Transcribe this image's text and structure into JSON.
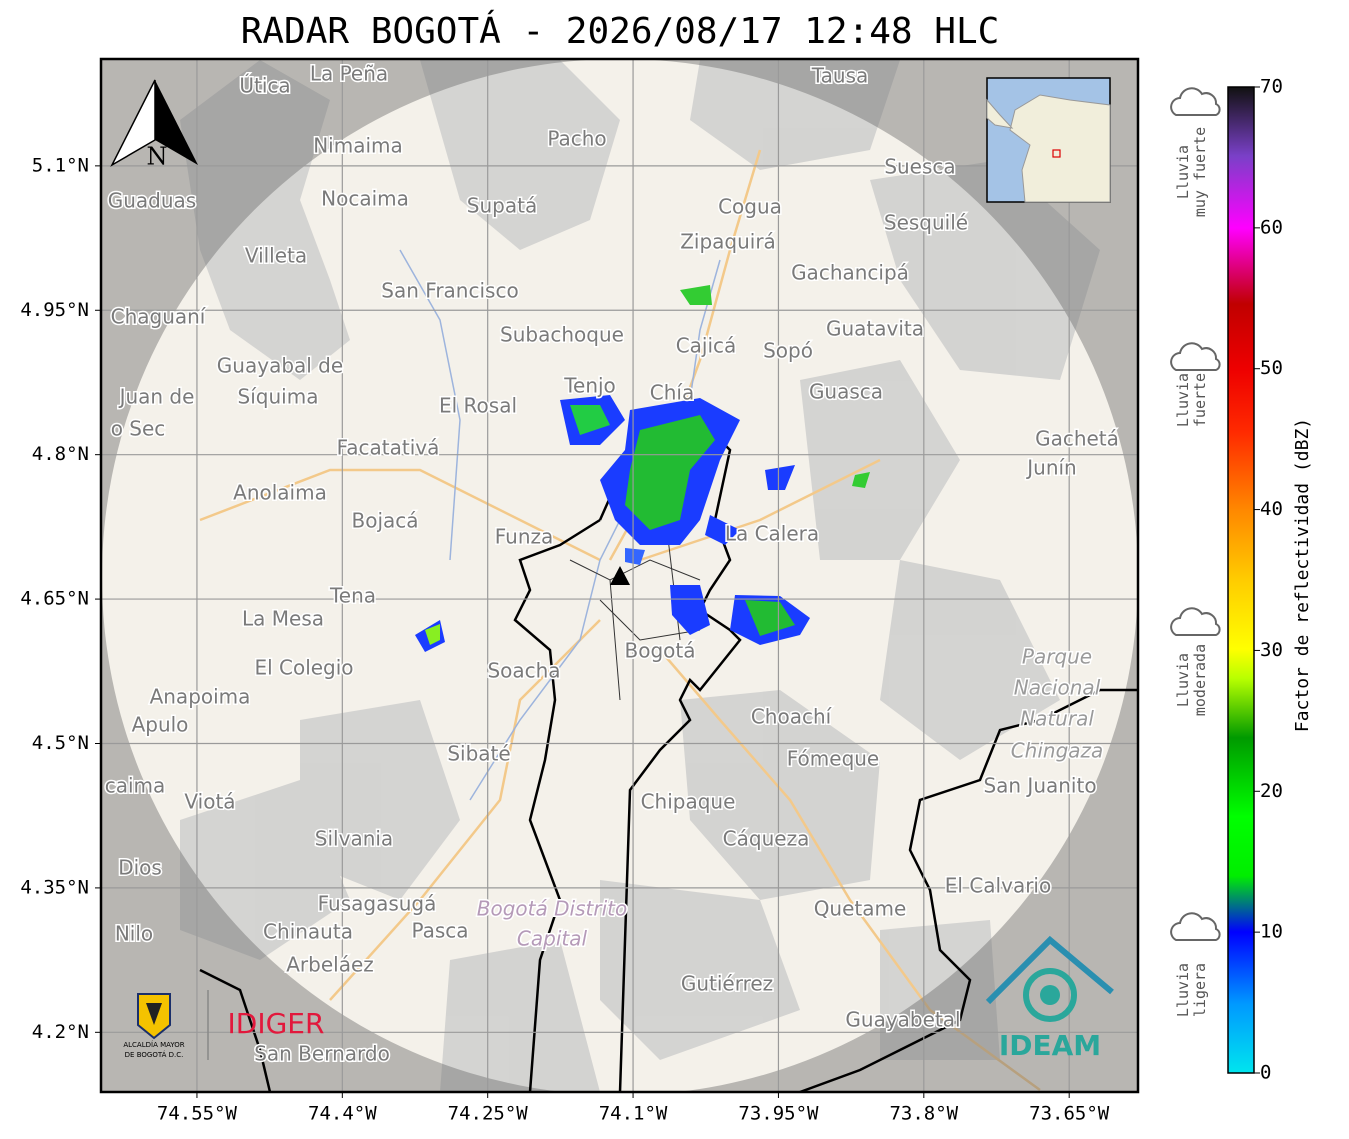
{
  "title": "RADAR BOGOTÁ - 2026/08/17 12:48 HLC",
  "map": {
    "xlim": [
      -74.649,
      -73.579
    ],
    "ylim": [
      4.138,
      5.211
    ],
    "xticks": [
      {
        "value": -74.55,
        "label": "74.55°W"
      },
      {
        "value": -74.4,
        "label": "74.4°W"
      },
      {
        "value": -74.25,
        "label": "74.25°W"
      },
      {
        "value": -74.1,
        "label": "74.1°W"
      },
      {
        "value": -73.95,
        "label": "73.95°W"
      },
      {
        "value": -73.8,
        "label": "73.8°W"
      },
      {
        "value": -73.65,
        "label": "73.65°W"
      }
    ],
    "yticks": [
      {
        "value": 5.1,
        "label": "5.1°N"
      },
      {
        "value": 4.95,
        "label": "4.95°N"
      },
      {
        "value": 4.8,
        "label": "4.8°N"
      },
      {
        "value": 4.65,
        "label": "4.65°N"
      },
      {
        "value": 4.5,
        "label": "4.5°N"
      },
      {
        "value": 4.35,
        "label": "4.35°N"
      },
      {
        "value": 4.2,
        "label": "4.2°N"
      }
    ],
    "north": "N",
    "places": [
      "La Peña",
      "Útica",
      "Tausa",
      "Pacho",
      "Nimaima",
      "Guaduas",
      "Nocaima",
      "Supatá",
      "Cogua",
      "Suesca",
      "Sesquilé",
      "Zipaquirá",
      "Villeta",
      "Gachancipá",
      "San Francisco",
      "Chaguaní",
      "Guatavita",
      "Subachoque",
      "Cajicá",
      "Sopó",
      "Guayabal de",
      "Síquima",
      "Tenjo",
      "Chía",
      "Guasca",
      "Juan de",
      "o Sec",
      "El Rosal",
      "Gachetá",
      "Facatativá",
      "Junín",
      "Anolaima",
      "Bojacá",
      "Funza",
      "La Calera",
      "Tena",
      "La Mesa",
      "Bogotá",
      "Parque",
      "Nacional",
      "Natural",
      "Chingaza",
      "El Colegio",
      "Soacha",
      "Anapoima",
      "Apulo",
      "Choachí",
      "Sibaté",
      "Fómeque",
      "San Juanito",
      "caima",
      "Viotá",
      "Chipaque",
      "Silvania",
      "Cáqueza",
      "Dios",
      "El Calvario",
      "Fusagasugá",
      "Bogotá Distrito",
      "Capital",
      "Quetame",
      "Nilo",
      "Chinauta",
      "Pasca",
      "Arbeláez",
      "Gutiérrez",
      "Guayabetal",
      "San Bernardo"
    ]
  },
  "colorbar": {
    "label": "Factor de reflectividad (dBZ)",
    "lim": [
      0,
      70
    ],
    "ticks": [
      0,
      10,
      20,
      30,
      40,
      50,
      60,
      70
    ]
  },
  "rain_labels": [
    [
      "Lluvia",
      "muy fuerte"
    ],
    [
      "Lluvia",
      "fuerte"
    ],
    [
      "Lluvia",
      "moderada"
    ],
    [
      "Lluvia",
      "ligera"
    ]
  ],
  "logos": {
    "alcaldia": [
      "ALCALDÍA MAYOR",
      "DE BOGOTÁ D.C."
    ],
    "idiger": "IDIGER",
    "ideam": "IDEAM"
  }
}
